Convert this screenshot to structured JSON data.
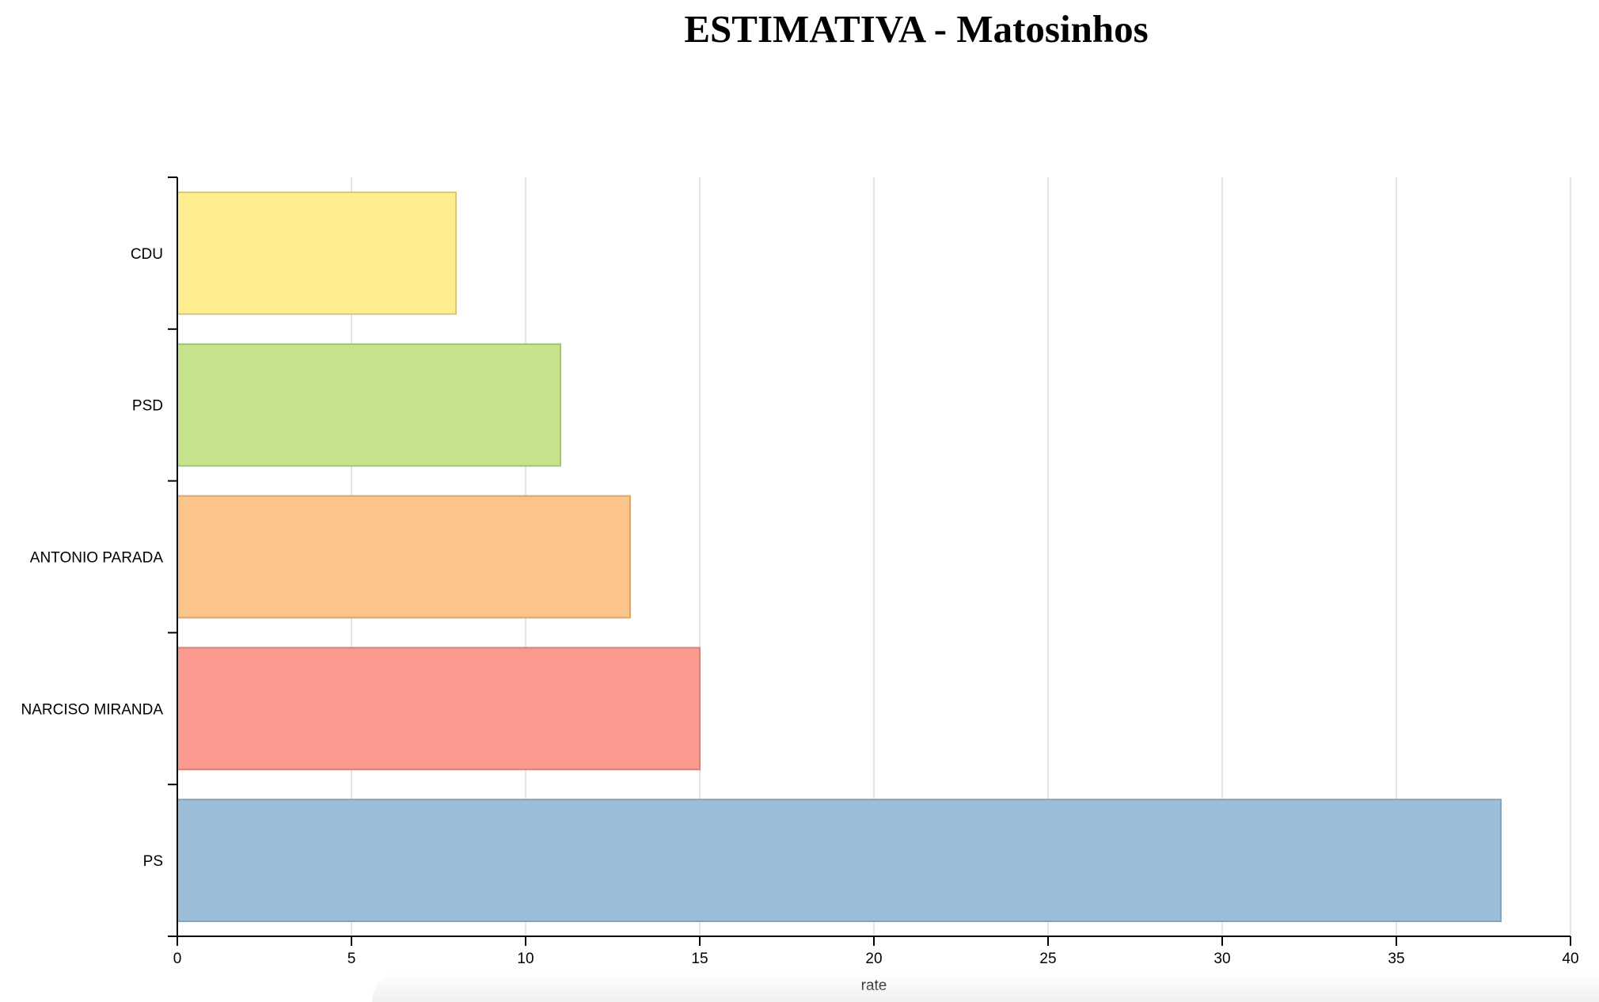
{
  "chart_data": {
    "type": "bar",
    "orientation": "horizontal",
    "title": "ESTIMATIVA - Matosinhos",
    "xlabel": "rate",
    "ylabel": "",
    "categories": [
      "CDU",
      "PSD",
      "ANTONIO PARADA",
      "NARCISO MIRANDA",
      "PS"
    ],
    "values": [
      8,
      11,
      13,
      15,
      38
    ],
    "colors": [
      "#ffed8f",
      "#c5e48c",
      "#fcc38a",
      "#fb9a90",
      "#9bbfda"
    ],
    "stroke_colors": [
      "#d8c87e",
      "#a4c17a",
      "#d8a574",
      "#d8827a",
      "#85a3bb"
    ],
    "xlim": [
      0,
      40
    ],
    "xticks": [
      0,
      5,
      10,
      15,
      20,
      25,
      30,
      35,
      40
    ],
    "grid": true
  }
}
